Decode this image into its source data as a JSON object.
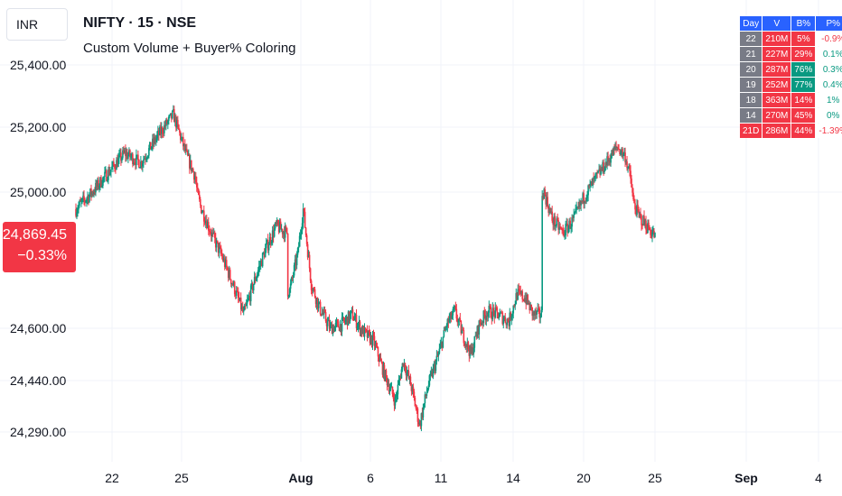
{
  "header": {
    "currency": "INR",
    "symbol_title": "NIFTY · 15 · NSE",
    "indicator_name": "Custom Volume + Buyer% Coloring"
  },
  "price_badge": {
    "price": "24,869.45",
    "change": "−0.33%"
  },
  "stats_table": {
    "headers": [
      "Day",
      "V",
      "B%",
      "P%"
    ],
    "rows": [
      {
        "day": "22",
        "v": "210M",
        "b": "5%",
        "p": "-0.9%",
        "b_color": "red",
        "p_dir": "neg"
      },
      {
        "day": "21",
        "v": "227M",
        "b": "29%",
        "p": "0.1%",
        "b_color": "red",
        "p_dir": "pos"
      },
      {
        "day": "20",
        "v": "287M",
        "b": "76%",
        "p": "0.3%",
        "b_color": "green",
        "p_dir": "pos"
      },
      {
        "day": "19",
        "v": "252M",
        "b": "77%",
        "p": "0.4%",
        "b_color": "green",
        "p_dir": "pos"
      },
      {
        "day": "18",
        "v": "363M",
        "b": "14%",
        "p": "1%",
        "b_color": "red",
        "p_dir": "pos"
      },
      {
        "day": "14",
        "v": "270M",
        "b": "45%",
        "p": "0%",
        "b_color": "red",
        "p_dir": "pos"
      },
      {
        "day": "21D",
        "v": "286M",
        "b": "44%",
        "p": "-1.39%",
        "b_color": "red",
        "p_dir": "neg",
        "summary": true
      }
    ]
  },
  "colors": {
    "up": "#089981",
    "down": "#f23645",
    "grid": "#f0f3fa",
    "header": "#2962ff"
  },
  "chart_data": {
    "type": "candlestick",
    "title": "NIFTY · 15 · NSE",
    "y_ticks": [
      {
        "value": 25400,
        "label": "25,400.00"
      },
      {
        "value": 25200,
        "label": "25,200.00"
      },
      {
        "value": 25000,
        "label": "25,000.00"
      },
      {
        "value": 24600,
        "label": "24,600.00"
      },
      {
        "value": 24440,
        "label": "24,440.00"
      },
      {
        "value": 24290,
        "label": "24,290.00"
      }
    ],
    "x_ticks": [
      {
        "label": "22"
      },
      {
        "label": "25"
      },
      {
        "label": "Aug",
        "bold": true
      },
      {
        "label": "6"
      },
      {
        "label": "11"
      },
      {
        "label": "14"
      },
      {
        "label": "20"
      },
      {
        "label": "25"
      },
      {
        "label": "Sep",
        "bold": true
      },
      {
        "label": "4"
      }
    ],
    "last_price": 24869.45,
    "last_change_pct": -0.33,
    "close_path": [
      [
        0,
        24950
      ],
      [
        6,
        25000
      ],
      [
        12,
        25060
      ],
      [
        18,
        25120
      ],
      [
        24,
        25090
      ],
      [
        30,
        25170
      ],
      [
        36,
        25240
      ],
      [
        41,
        25110
      ],
      [
        44,
        25050
      ],
      [
        45,
        24990
      ],
      [
        46,
        24960
      ],
      [
        50,
        24880
      ],
      [
        54,
        24810
      ],
      [
        58,
        24730
      ],
      [
        62,
        24640
      ],
      [
        66,
        24740
      ],
      [
        70,
        24830
      ],
      [
        74,
        24900
      ],
      [
        78,
        24880
      ],
      [
        79,
        24710
      ],
      [
        82,
        24820
      ],
      [
        84,
        24950
      ],
      [
        87,
        24730
      ],
      [
        90,
        24660
      ],
      [
        94,
        24600
      ],
      [
        98,
        24610
      ],
      [
        102,
        24640
      ],
      [
        106,
        24590
      ],
      [
        110,
        24560
      ],
      [
        114,
        24460
      ],
      [
        118,
        24380
      ],
      [
        121,
        24500
      ],
      [
        124,
        24420
      ],
      [
        127,
        24310
      ],
      [
        130,
        24420
      ],
      [
        134,
        24520
      ],
      [
        137,
        24610
      ],
      [
        140,
        24650
      ],
      [
        143,
        24580
      ],
      [
        146,
        24520
      ],
      [
        149,
        24610
      ],
      [
        152,
        24650
      ],
      [
        156,
        24640
      ],
      [
        160,
        24620
      ],
      [
        163,
        24700
      ],
      [
        166,
        24690
      ],
      [
        169,
        24640
      ],
      [
        172,
        24640
      ],
      [
        173,
        25000
      ],
      [
        176,
        24920
      ],
      [
        180,
        24880
      ],
      [
        184,
        24920
      ],
      [
        188,
        24990
      ],
      [
        192,
        25040
      ],
      [
        196,
        25090
      ],
      [
        200,
        25140
      ],
      [
        203,
        25110
      ],
      [
        205,
        25040
      ],
      [
        206,
        24970
      ],
      [
        208,
        24930
      ],
      [
        211,
        24900
      ],
      [
        214,
        24870
      ]
    ],
    "gap_after_index": [
      41,
      78,
      172
    ]
  }
}
